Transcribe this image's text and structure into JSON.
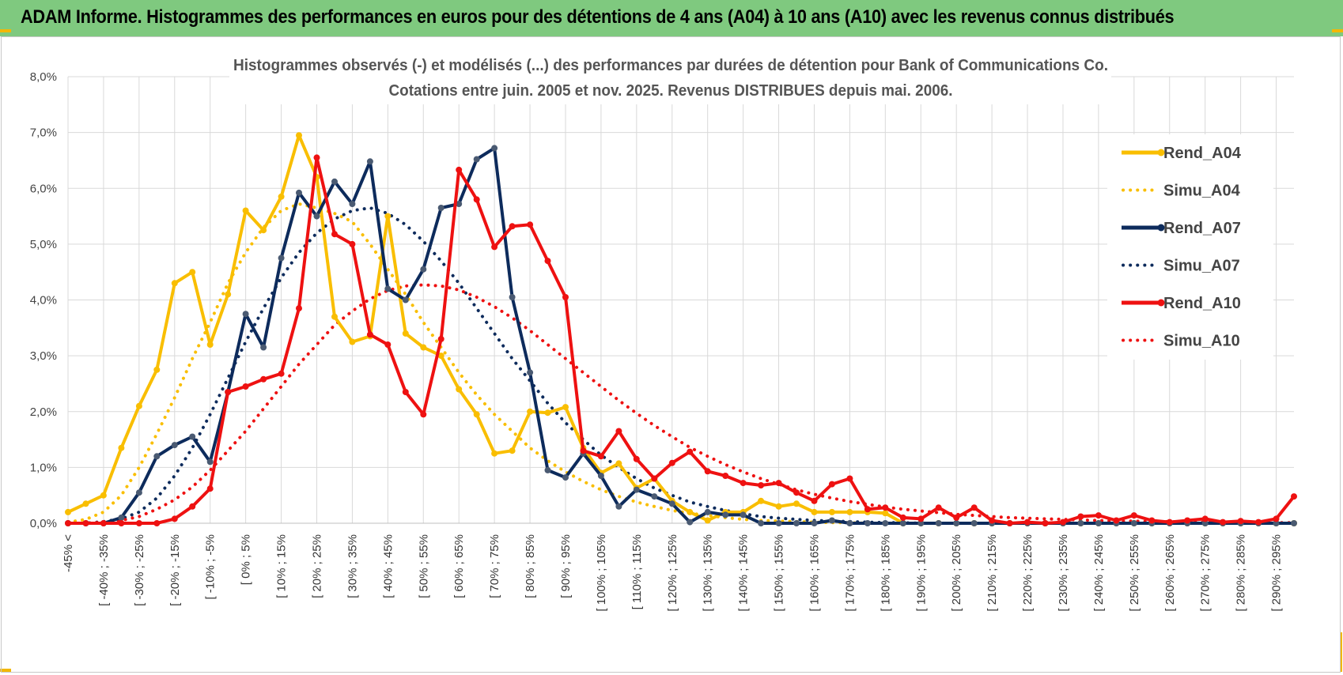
{
  "header": {
    "title": "ADAM Informe. Histogrammes des performances en euros pour des détentions de 4 ans (A04) à 10 ans (A10) avec les revenus connus distribués"
  },
  "chart_data": {
    "type": "line",
    "title": "Histogrammes observés (-)  et modélisés (...) des performances par durées de détention pour Bank of Communications Co.",
    "subtitle": "Cotations entre juin. 2005 et nov. 2025. Revenus DISTRIBUES depuis mai. 2006.",
    "xlabel": "",
    "ylabel": "",
    "ylim": [
      0,
      8
    ],
    "y_ticks": [
      "0,0%",
      "1,0%",
      "2,0%",
      "3,0%",
      "4,0%",
      "5,0%",
      "6,0%",
      "7,0%",
      "8,0%"
    ],
    "grid": true,
    "legend_position": "right",
    "x_labels": [
      "-45% <",
      "[ -40% ; -35%",
      "[ -30% ; -25%",
      "[ -20% ; -15%",
      "[ -10% ; -5%",
      "[ 0% ; 5%",
      "[ 10% ; 15%",
      "[ 20% ; 25%",
      "[ 30% ; 35%",
      "[ 40% ; 45%",
      "[ 50% ; 55%",
      "[ 60% ; 65%",
      "[ 70% ; 75%",
      "[ 80% ; 85%",
      "[ 90% ; 95%",
      "[ 100% ; 105%",
      "[ 110% ; 115%",
      "[ 120% ; 125%",
      "[ 130% ; 135%",
      "[ 140% ; 145%",
      "[ 150% ; 155%",
      "[ 160% ; 165%",
      "[ 170% ; 175%",
      "[ 180% ; 185%",
      "[ 190% ; 195%",
      "[ 200% ; 205%",
      "[ 210% ; 215%",
      "[ 220% ; 225%",
      "[ 230% ; 235%",
      "[ 240% ; 245%",
      "[ 250% ; 255%",
      "[ 260% ; 265%",
      "[ 270% ; 275%",
      "[ 280% ; 285%",
      "[ 290% ; 295%"
    ],
    "n_points": 70,
    "series": [
      {
        "name": "Rend_A04",
        "style": "solid",
        "color": "#f9be00",
        "values": [
          0.2,
          0.35,
          0.5,
          1.35,
          2.1,
          2.75,
          4.3,
          4.5,
          3.2,
          4.1,
          5.6,
          5.25,
          5.85,
          6.95,
          6.2,
          3.7,
          3.25,
          3.35,
          5.5,
          3.4,
          3.15,
          3.0,
          2.4,
          1.95,
          1.25,
          1.3,
          2.0,
          1.98,
          2.08,
          1.35,
          0.9,
          1.07,
          0.63,
          0.8,
          0.4,
          0.2,
          0.05,
          0.2,
          0.2,
          0.4,
          0.3,
          0.35,
          0.2,
          0.2,
          0.2,
          0.2,
          0.18,
          0.0,
          0.0,
          0.0,
          0.0,
          0.0,
          0.0,
          0.0,
          0.0,
          0.0,
          0.0,
          0.0,
          0.0,
          0.0,
          0.0,
          0.0,
          0.0,
          0.0,
          0.0,
          0.0,
          0.0,
          0.0,
          0.0,
          0.0
        ]
      },
      {
        "name": "Simu_A04",
        "style": "dotted",
        "color": "#f9be00",
        "values": [
          0.02,
          0.07,
          0.2,
          0.5,
          1.0,
          1.6,
          2.25,
          2.95,
          3.6,
          4.3,
          4.85,
          5.3,
          5.6,
          5.72,
          5.65,
          5.55,
          5.4,
          5.0,
          4.55,
          4.1,
          3.6,
          3.15,
          2.7,
          2.3,
          1.95,
          1.65,
          1.35,
          1.12,
          0.92,
          0.75,
          0.6,
          0.48,
          0.38,
          0.3,
          0.23,
          0.18,
          0.14,
          0.1,
          0.07,
          0.05,
          0.04,
          0.03,
          0.02,
          0.01,
          0.01,
          0.0,
          0.0,
          0.0,
          0.0,
          0.0,
          0.0,
          0.0,
          0.0,
          0.0,
          0.0,
          0.0,
          0.0,
          0.0,
          0.0,
          0.0,
          0.0,
          0.0,
          0.0,
          0.0,
          0.0,
          0.0,
          0.0,
          0.0,
          0.0,
          0.0
        ]
      },
      {
        "name": "Rend_A07",
        "style": "solid",
        "color": "#0d2b5c",
        "values": [
          0.0,
          0.0,
          0.0,
          0.1,
          0.55,
          1.2,
          1.4,
          1.55,
          1.1,
          2.35,
          3.75,
          3.15,
          4.75,
          5.92,
          5.5,
          6.12,
          5.72,
          6.48,
          4.2,
          4.0,
          4.55,
          5.65,
          5.72,
          6.52,
          6.72,
          4.05,
          2.7,
          0.95,
          0.82,
          1.25,
          0.85,
          0.3,
          0.6,
          0.48,
          0.35,
          0.02,
          0.2,
          0.15,
          0.15,
          0.0,
          0.0,
          0.0,
          0.0,
          0.05,
          0.0,
          0.0,
          0.0,
          0.0,
          0.0,
          0.0,
          0.0,
          0.0,
          0.0,
          0.0,
          0.0,
          0.0,
          0.0,
          0.0,
          0.0,
          0.0,
          0.0,
          0.0,
          0.0,
          0.0,
          0.0,
          0.0,
          0.0,
          0.0,
          0.0,
          0.0
        ]
      },
      {
        "name": "Simu_A07",
        "style": "dotted",
        "color": "#0d2b5c",
        "values": [
          0.0,
          0.0,
          0.03,
          0.08,
          0.2,
          0.45,
          0.85,
          1.35,
          1.95,
          2.6,
          3.25,
          3.85,
          4.4,
          4.85,
          5.2,
          5.45,
          5.6,
          5.65,
          5.55,
          5.35,
          5.05,
          4.7,
          4.3,
          3.85,
          3.4,
          2.95,
          2.55,
          2.15,
          1.8,
          1.5,
          1.22,
          1.0,
          0.8,
          0.63,
          0.5,
          0.38,
          0.3,
          0.23,
          0.17,
          0.12,
          0.09,
          0.07,
          0.05,
          0.04,
          0.03,
          0.02,
          0.01,
          0.01,
          0.0,
          0.0,
          0.0,
          0.0,
          0.0,
          0.0,
          0.0,
          0.0,
          0.0,
          0.0,
          0.0,
          0.0,
          0.0,
          0.0,
          0.0,
          0.0,
          0.0,
          0.0,
          0.0,
          0.0,
          0.0,
          0.0
        ]
      },
      {
        "name": "Rend_A10",
        "style": "solid",
        "color": "#ee1111",
        "values": [
          0.0,
          0.0,
          0.0,
          0.0,
          0.0,
          0.0,
          0.08,
          0.3,
          0.62,
          2.35,
          2.45,
          2.58,
          2.68,
          3.85,
          6.55,
          5.18,
          5.0,
          3.38,
          3.2,
          2.35,
          1.95,
          3.3,
          6.33,
          5.8,
          4.95,
          5.32,
          5.35,
          4.7,
          4.05,
          1.3,
          1.2,
          1.65,
          1.15,
          0.8,
          1.08,
          1.28,
          0.93,
          0.85,
          0.72,
          0.68,
          0.72,
          0.55,
          0.4,
          0.7,
          0.8,
          0.25,
          0.28,
          0.1,
          0.08,
          0.28,
          0.1,
          0.28,
          0.05,
          0.0,
          0.02,
          0.0,
          0.02,
          0.12,
          0.14,
          0.05,
          0.14,
          0.05,
          0.02,
          0.05,
          0.08,
          0.02,
          0.04,
          0.02,
          0.08,
          0.48
        ]
      },
      {
        "name": "Simu_A10",
        "style": "dotted",
        "color": "#ee1111",
        "values": [
          0.0,
          0.0,
          0.02,
          0.05,
          0.12,
          0.25,
          0.42,
          0.65,
          0.95,
          1.3,
          1.65,
          2.05,
          2.45,
          2.85,
          3.2,
          3.55,
          3.8,
          4.02,
          4.17,
          4.25,
          4.27,
          4.25,
          4.18,
          4.05,
          3.88,
          3.68,
          3.45,
          3.2,
          2.95,
          2.7,
          2.45,
          2.2,
          1.97,
          1.75,
          1.55,
          1.36,
          1.2,
          1.05,
          0.92,
          0.8,
          0.7,
          0.6,
          0.52,
          0.45,
          0.39,
          0.34,
          0.29,
          0.25,
          0.22,
          0.19,
          0.16,
          0.14,
          0.12,
          0.1,
          0.09,
          0.08,
          0.07,
          0.06,
          0.05,
          0.04,
          0.04,
          0.03,
          0.03,
          0.02,
          0.02,
          0.02,
          0.01,
          0.01,
          0.01,
          0.01
        ]
      }
    ]
  }
}
